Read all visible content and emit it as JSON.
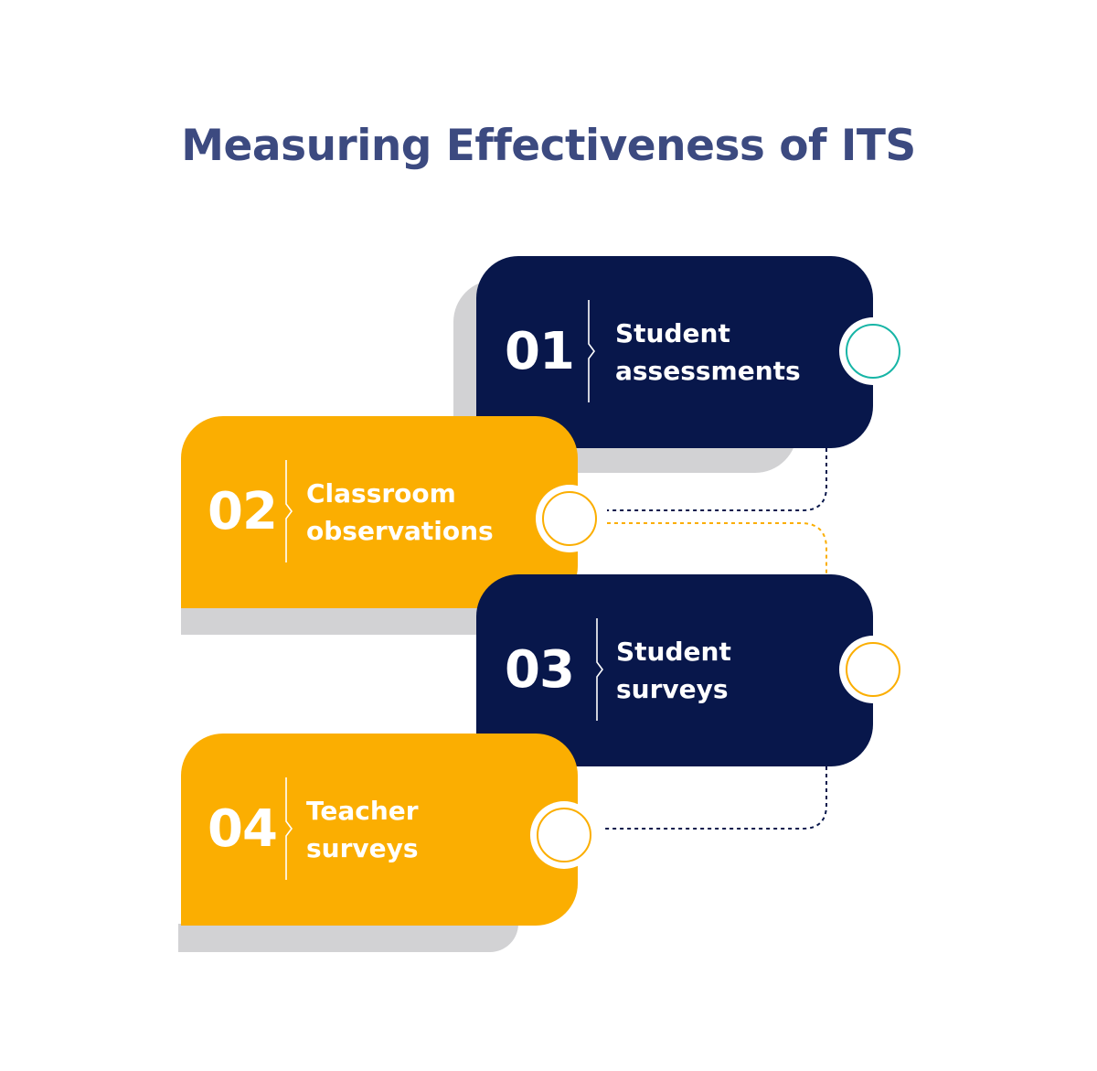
{
  "title": "Measuring Effectiveness of ITS",
  "colors": {
    "title": "#3c4a80",
    "navy": "#08174b",
    "amber": "#fbae01",
    "teal": "#17b5a6",
    "shadow": "#d2d2d4",
    "text": "#ffffff"
  },
  "steps": [
    {
      "number": "01",
      "label": "Student\nassessments",
      "color": "navy",
      "ring": "teal"
    },
    {
      "number": "02",
      "label": "Classroom\nobservations",
      "color": "amber",
      "ring": "amber"
    },
    {
      "number": "03",
      "label": "Student\nsurveys",
      "color": "navy",
      "ring": "amber"
    },
    {
      "number": "04",
      "label": "Teacher\nsurveys",
      "color": "amber",
      "ring": "amber"
    }
  ]
}
